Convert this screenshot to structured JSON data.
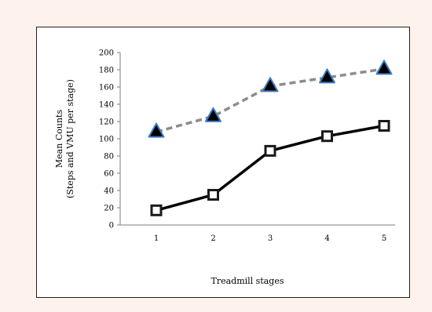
{
  "chart_data": {
    "type": "line",
    "title": "",
    "xlabel": "Treadmill stages",
    "ylabel_lines": [
      "Mean Counts",
      "(Steps and VMU per stage)"
    ],
    "categories": [
      "1",
      "2",
      "3",
      "4",
      "5"
    ],
    "ylim": [
      0,
      200
    ],
    "y_ticks": [
      "0",
      "20",
      "40",
      "60",
      "80",
      "100",
      "120",
      "140",
      "160",
      "180",
      "200"
    ],
    "grid": false,
    "legend": "none",
    "series": [
      {
        "values": [
          108,
          126,
          161,
          171,
          181
        ],
        "line_color": "#8c8c8c",
        "line_style": "dashed",
        "marker": "triangle",
        "marker_fill": "#000000",
        "marker_edge": "#3b7dc4"
      },
      {
        "values": [
          17,
          35,
          86,
          103,
          115
        ],
        "line_color": "#000000",
        "line_style": "solid",
        "marker": "square",
        "marker_fill": "#ffffff",
        "marker_edge": "#1a1a1a"
      }
    ]
  }
}
